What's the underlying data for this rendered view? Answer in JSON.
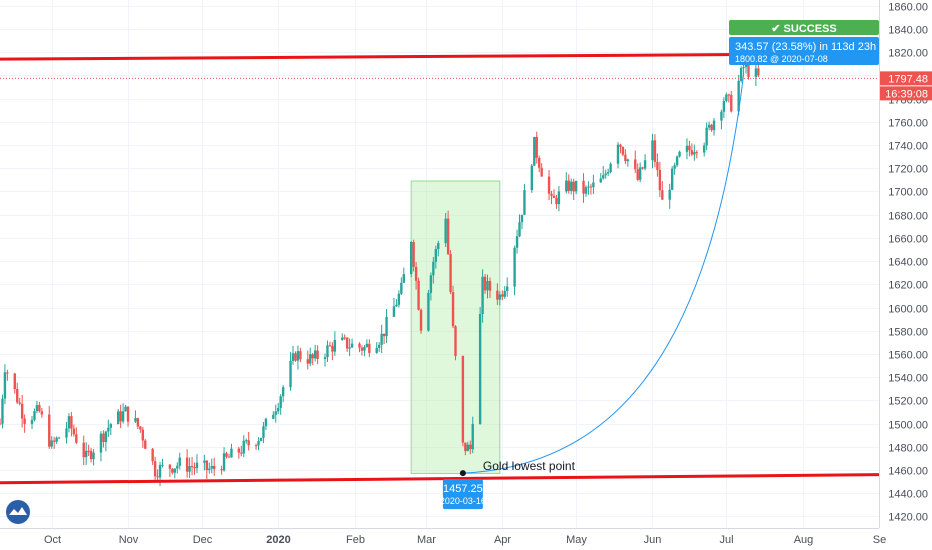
{
  "chart_data": {
    "type": "candlestick",
    "ylim": [
      1410,
      1865
    ],
    "grid": true,
    "y_ticks": [
      1420,
      1440,
      1460,
      1480,
      1500,
      1520,
      1540,
      1560,
      1580,
      1600,
      1620,
      1640,
      1660,
      1680,
      1700,
      1720,
      1740,
      1760,
      1780,
      1800,
      1820,
      1840,
      1860
    ],
    "x_ticks": [
      {
        "label": "Oct",
        "date": "2019-10-01"
      },
      {
        "label": "Nov",
        "date": "2019-11-01"
      },
      {
        "label": "Dec",
        "date": "2019-12-01"
      },
      {
        "label": "2020",
        "date": "2020-01-01",
        "bold": true
      },
      {
        "label": "Feb",
        "date": "2020-02-01"
      },
      {
        "label": "Mar",
        "date": "2020-03-01"
      },
      {
        "label": "Apr",
        "date": "2020-04-01"
      },
      {
        "label": "May",
        "date": "2020-05-01"
      },
      {
        "label": "Jun",
        "date": "2020-06-01"
      },
      {
        "label": "Jul",
        "date": "2020-07-01"
      },
      {
        "label": "Aug",
        "date": "2020-08-01"
      },
      {
        "label": "Se",
        "date": "2020-09-01"
      }
    ],
    "x_range": [
      "2019-09-10",
      "2020-09-01"
    ],
    "anchors": [
      {
        "date": "2019-09-10",
        "price": 1500
      },
      {
        "date": "2019-09-12",
        "price": 1550
      },
      {
        "date": "2019-09-20",
        "price": 1505
      },
      {
        "date": "2019-09-26",
        "price": 1510
      },
      {
        "date": "2019-10-01",
        "price": 1480
      },
      {
        "date": "2019-10-08",
        "price": 1500
      },
      {
        "date": "2019-10-15",
        "price": 1470
      },
      {
        "date": "2019-10-25",
        "price": 1500
      },
      {
        "date": "2019-10-31",
        "price": 1510
      },
      {
        "date": "2019-11-06",
        "price": 1495
      },
      {
        "date": "2019-11-12",
        "price": 1460
      },
      {
        "date": "2019-11-22",
        "price": 1465
      },
      {
        "date": "2019-12-05",
        "price": 1460
      },
      {
        "date": "2019-12-15",
        "price": 1475
      },
      {
        "date": "2019-12-25",
        "price": 1490
      },
      {
        "date": "2020-01-01",
        "price": 1520
      },
      {
        "date": "2020-01-08",
        "price": 1560
      },
      {
        "date": "2020-01-15",
        "price": 1555
      },
      {
        "date": "2020-01-25",
        "price": 1570
      },
      {
        "date": "2020-02-05",
        "price": 1565
      },
      {
        "date": "2020-02-12",
        "price": 1575
      },
      {
        "date": "2020-02-20",
        "price": 1615
      },
      {
        "date": "2020-02-24",
        "price": 1660
      },
      {
        "date": "2020-02-28",
        "price": 1585
      },
      {
        "date": "2020-03-04",
        "price": 1640
      },
      {
        "date": "2020-03-09",
        "price": 1680
      },
      {
        "date": "2020-03-12",
        "price": 1580
      },
      {
        "date": "2020-03-16",
        "price": 1480
      },
      {
        "date": "2020-03-19",
        "price": 1478
      },
      {
        "date": "2020-03-24",
        "price": 1620
      },
      {
        "date": "2020-03-31",
        "price": 1610
      },
      {
        "date": "2020-04-03",
        "price": 1625
      },
      {
        "date": "2020-04-09",
        "price": 1685
      },
      {
        "date": "2020-04-14",
        "price": 1740
      },
      {
        "date": "2020-04-21",
        "price": 1690
      },
      {
        "date": "2020-04-28",
        "price": 1705
      },
      {
        "date": "2020-05-05",
        "price": 1700
      },
      {
        "date": "2020-05-12",
        "price": 1710
      },
      {
        "date": "2020-05-18",
        "price": 1745
      },
      {
        "date": "2020-05-26",
        "price": 1710
      },
      {
        "date": "2020-06-01",
        "price": 1740
      },
      {
        "date": "2020-06-05",
        "price": 1690
      },
      {
        "date": "2020-06-12",
        "price": 1730
      },
      {
        "date": "2020-06-22",
        "price": 1745
      },
      {
        "date": "2020-06-30",
        "price": 1780
      },
      {
        "date": "2020-07-03",
        "price": 1775
      },
      {
        "date": "2020-07-08",
        "price": 1807
      },
      {
        "date": "2020-07-13",
        "price": 1800
      },
      {
        "date": "2020-07-14",
        "price": 1797.48
      }
    ],
    "annotations": {
      "resistance_line": {
        "start": {
          "date": "2019-09-10",
          "price": 1814
        },
        "end": {
          "date": "2020-07-07",
          "price": 1818
        },
        "color": "#e8141a"
      },
      "support_line": {
        "start": {
          "date": "2019-09-10",
          "price": 1449
        },
        "end": {
          "date": "2020-09-01",
          "price": 1456
        },
        "color": "#e8141a"
      },
      "covid_box": {
        "start": "2020-02-24",
        "end": "2020-03-31",
        "top": 1709,
        "bottom": 1457
      },
      "projection": {
        "start": {
          "date": "2020-03-16",
          "price": 1457.25
        },
        "end": {
          "date": "2020-07-08",
          "price": 1800.82
        }
      },
      "low_point": {
        "date": "2020-03-16",
        "price": 1457.25,
        "label": "Gold lowest point"
      },
      "current_price": 1797.48
    },
    "labels": {
      "success": "SUCCESS",
      "result_line1": "343.57 (23.58%) in 113d 23h",
      "result_line2": "1800.82 @ 2020-07-08",
      "low_price": "1457.25",
      "low_date": "2020-03-16",
      "price_tag": "1797.48",
      "countdown": "16:39:08",
      "watermark_tick": "1780.00"
    },
    "colors": {
      "up": "#26a69a",
      "down": "#ef5350",
      "trendline": "#e8141a",
      "success_bg": "#4caf50",
      "info_bg": "#2196f3",
      "box_fill": "#b7f0b0",
      "box_stroke": "#8be08a",
      "curve": "#2196f3"
    }
  }
}
